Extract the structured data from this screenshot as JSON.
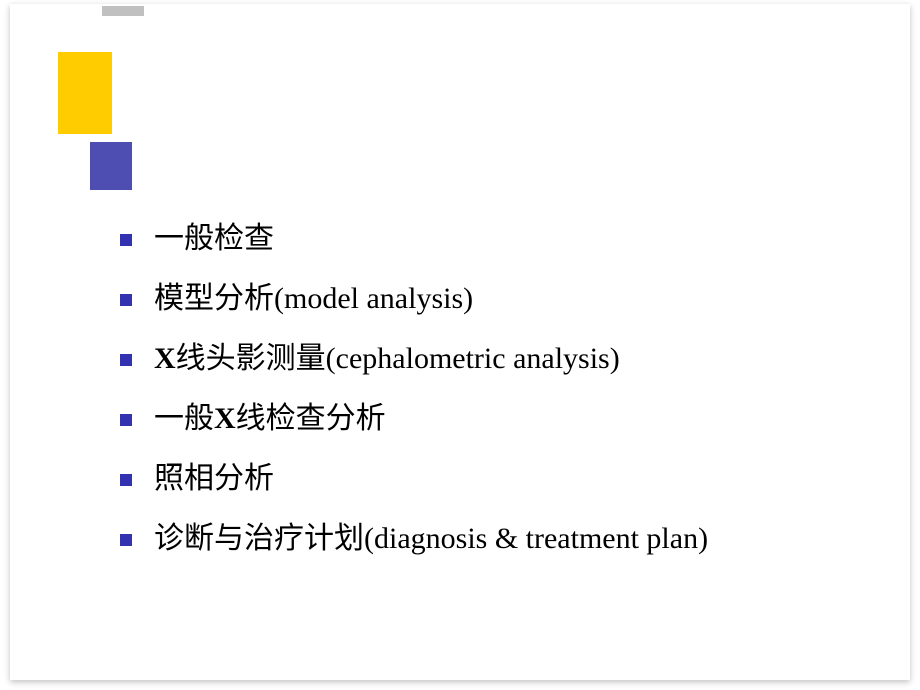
{
  "slide": {
    "bullet_color": "#3333b2",
    "text_color": "#000000",
    "background_color": "#ffffff",
    "font_size": 30,
    "decoration": {
      "yellow_block_color": "#ffcc00",
      "purple_block_color": "#4d4db2",
      "gray_bar_color": "#c0c0c0"
    },
    "items": [
      {
        "text": "一般检查"
      },
      {
        "text": "模型分析(model analysis)"
      },
      {
        "text_prefix_bold": "X",
        "text": "线头影测量(cephalometric analysis)"
      },
      {
        "text_prefix": "一般",
        "text_bold": "X",
        "text_suffix": "线检查分析"
      },
      {
        "text": "照相分析"
      },
      {
        "text": "诊断与治疗计划(diagnosis & treatment plan)"
      }
    ]
  }
}
